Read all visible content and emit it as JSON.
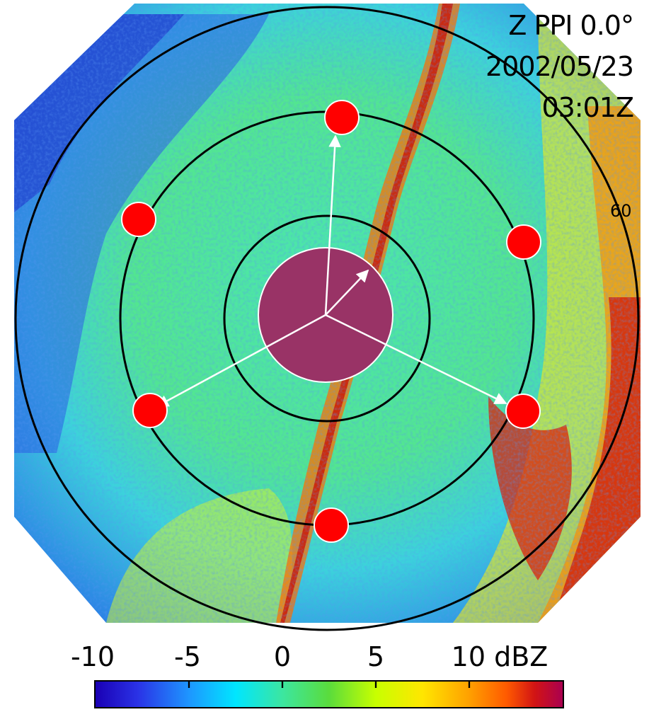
{
  "header": {
    "product": "Z PPI 0.0°",
    "date": "2002/05/23",
    "time": "03:01Z"
  },
  "range_ring_label": "60",
  "colorbar": {
    "ticks": [
      "-10",
      "-5",
      "0",
      "5",
      "10 dBZ"
    ],
    "tick_values": [
      -10,
      -5,
      0,
      5,
      10
    ],
    "range": [
      -12.5,
      12.5
    ],
    "unit": "dBZ",
    "stops": [
      "#1a00b4",
      "#2a32e6",
      "#1e96ff",
      "#00e6ff",
      "#3ce6a0",
      "#5adc3c",
      "#c8ff00",
      "#ffe600",
      "#ffa000",
      "#ff5a00",
      "#d21414",
      "#aa0050"
    ]
  },
  "colors": {
    "site_marker": "#ff0000",
    "center_disk": "#993366",
    "arrow": "#ffffff",
    "ring": "#000000",
    "radar_field_base": "#3ce6b4"
  },
  "markers": [
    {
      "name": "site-north"
    },
    {
      "name": "site-northwest"
    },
    {
      "name": "site-northeast"
    },
    {
      "name": "site-west"
    },
    {
      "name": "site-east"
    },
    {
      "name": "site-south"
    }
  ],
  "icons": {
    "site_marker": "red-circle-marker-icon",
    "arrow": "white-arrow-icon",
    "center": "central-disk-icon"
  }
}
